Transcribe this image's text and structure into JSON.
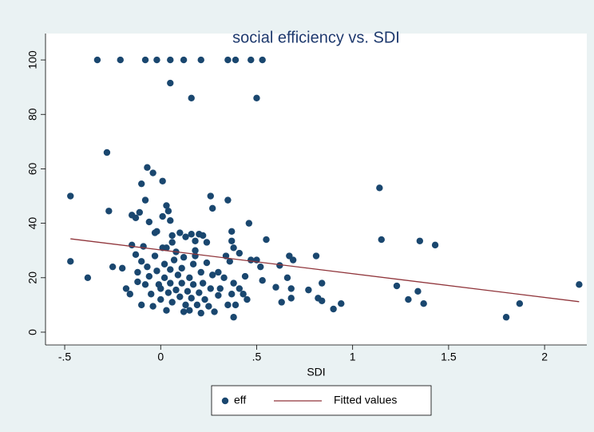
{
  "chart_data": {
    "type": "scatter",
    "title": "social efficiency vs. SDI",
    "xlabel": "SDI",
    "xlim": [
      -0.6,
      2.22
    ],
    "ylim": [
      -4.7,
      109.7
    ],
    "xticks": [
      {
        "value": -0.5,
        "label": "-.5"
      },
      0,
      {
        "value": 0.5,
        "label": ".5"
      },
      1,
      1.5,
      2
    ],
    "yticks": [
      0,
      20,
      40,
      60,
      80,
      100
    ],
    "grid": false,
    "legend": "bottom",
    "series": [
      {
        "name": "eff",
        "type": "scatter",
        "color": "#1a476f",
        "x": [
          -0.33,
          -0.21,
          -0.08,
          -0.02,
          0.05,
          0.12,
          0.21,
          0.35,
          0.39,
          0.47,
          0.53,
          0.05,
          0.16,
          0.5,
          -0.47,
          -0.47,
          -0.38,
          -0.28,
          -0.27,
          -0.25,
          -0.2,
          -0.18,
          -0.16,
          -0.15,
          -0.13,
          -0.11,
          -0.1,
          -0.08,
          -0.07,
          -0.06,
          -0.04,
          -0.03,
          0.01,
          0.01,
          0.03,
          0.04,
          0.05,
          0.06,
          0.08,
          0.1,
          0.13,
          0.16,
          0.18,
          0.2,
          0.26,
          0.27,
          0.35,
          0.37,
          0.37,
          0.38,
          0.41,
          0.44,
          0.46,
          0.47,
          0.5,
          0.52,
          0.53,
          0.55,
          0.6,
          0.62,
          0.63,
          0.66,
          0.67,
          0.68,
          0.69,
          0.68,
          0.77,
          0.81,
          0.82,
          0.84,
          0.84,
          0.9,
          0.94,
          1.14,
          1.15,
          1.23,
          1.29,
          1.34,
          1.35,
          1.37,
          1.43,
          1.8,
          1.87,
          2.18,
          -0.15,
          -0.13,
          -0.12,
          -0.12,
          -0.1,
          -0.1,
          -0.09,
          -0.08,
          -0.07,
          -0.06,
          -0.05,
          -0.04,
          -0.03,
          -0.02,
          -0.01,
          0,
          0,
          0.01,
          0.02,
          0.02,
          0.03,
          0.04,
          0.05,
          0.05,
          0.06,
          0.07,
          0.08,
          0.09,
          0.1,
          0.11,
          0.12,
          0.12,
          0.13,
          0.14,
          0.15,
          0.15,
          0.16,
          0.17,
          0.17,
          0.18,
          0.19,
          0.2,
          0.21,
          0.21,
          0.22,
          0.23,
          0.24,
          0.25,
          0.26,
          0.27,
          0.28,
          0.3,
          0.31,
          0.33,
          0.34,
          0.35,
          0.36,
          0.37,
          0.38,
          0.38,
          0.39,
          0.41,
          0.43,
          0.45,
          0.22,
          0.06,
          -0.02,
          0.03,
          0.11,
          0.18,
          0.24,
          0.3
        ],
        "values": [
          100,
          100,
          100,
          100,
          100,
          100,
          100,
          100,
          100,
          100,
          100,
          91.5,
          86,
          86,
          50,
          26,
          20,
          66,
          44.5,
          24,
          23.5,
          16,
          14,
          43,
          42,
          44,
          54.5,
          48.5,
          60.5,
          40.5,
          58.5,
          36.5,
          55.5,
          42.5,
          46.5,
          44.5,
          41,
          33,
          29.5,
          36.5,
          35,
          36,
          33.5,
          36,
          50,
          45.5,
          48.5,
          37,
          33.5,
          31,
          29,
          20.5,
          40,
          26.5,
          26.5,
          24,
          19,
          34,
          16.5,
          24.5,
          11,
          20,
          28,
          16,
          26.5,
          12.5,
          15.5,
          28,
          12.5,
          11.5,
          18,
          8.5,
          10.5,
          53,
          34,
          17,
          12,
          15,
          33.5,
          10.5,
          32,
          5.5,
          10.5,
          17.5,
          32,
          28.5,
          22,
          18.5,
          26,
          10,
          31.5,
          17.5,
          24,
          20.5,
          14,
          9.5,
          28,
          22.5,
          17.5,
          16,
          12,
          31,
          25,
          20,
          8,
          14.5,
          23,
          18,
          11,
          26.5,
          15.5,
          21,
          13,
          18,
          27.5,
          7.5,
          10,
          15,
          20,
          8,
          12.5,
          25,
          17.5,
          28,
          10,
          14.5,
          22,
          7,
          18,
          12,
          25.5,
          9.5,
          16,
          21,
          7.5,
          13.5,
          16,
          20,
          28,
          10,
          26,
          14,
          18,
          5.5,
          10,
          16,
          14,
          12,
          35.5,
          35.5,
          37,
          31,
          23.5,
          30,
          33,
          22
        ]
      },
      {
        "name": "Fitted values",
        "type": "line",
        "color": "#90353b",
        "x": [
          -0.47,
          2.18
        ],
        "values": [
          34.3,
          11.2
        ]
      }
    ]
  }
}
